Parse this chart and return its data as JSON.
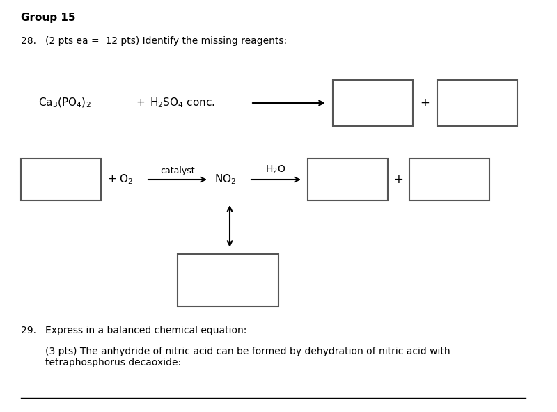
{
  "title": "Group 15",
  "q28_label": "28.",
  "q28_text": "(2 pts ea =  12 pts) Identify the missing reagents:",
  "q29_label": "29.",
  "q29_text": "Express in a balanced chemical equation:",
  "q29_sub": "(3 pts) The anhydride of nitric acid can be formed by dehydration of nitric acid with\ntetraphosphorus decaoxide:",
  "bg_color": "#ffffff",
  "text_color": "#000000",
  "box_edge_color": "#555555",
  "line_color": "#000000",
  "fig_width": 8.0,
  "fig_height": 5.92,
  "dpi": 100
}
